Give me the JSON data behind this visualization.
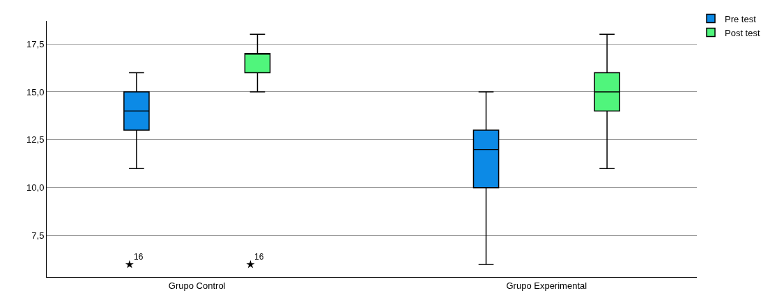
{
  "chart_data": {
    "type": "box",
    "categories": [
      "Grupo Control",
      "Grupo Experimental"
    ],
    "series": [
      {
        "name": "Pre test",
        "color": "#0c8ae6",
        "boxes": [
          {
            "low": 11,
            "q1": 13,
            "median": 14,
            "q3": 15,
            "high": 16,
            "outliers": [
              6
            ]
          },
          {
            "low": 6,
            "q1": 10,
            "median": 12,
            "q3": 13,
            "high": 15
          }
        ]
      },
      {
        "name": "Post test",
        "color": "#50f57c",
        "boxes": [
          {
            "low": 15,
            "q1": 16,
            "median": 17,
            "q3": 17,
            "high": 18,
            "outliers": [
              6
            ]
          },
          {
            "low": 11,
            "q1": 14,
            "median": 15,
            "q3": 16,
            "high": 18
          }
        ]
      }
    ],
    "ylim": [
      5.35,
      18.7
    ],
    "yticks": [
      {
        "value": 7.5,
        "label": "7,5"
      },
      {
        "value": 10,
        "label": "10,0"
      },
      {
        "value": 12.5,
        "label": "12,5"
      },
      {
        "value": 15,
        "label": "15,0"
      },
      {
        "value": 17.5,
        "label": "17,5"
      }
    ],
    "annotations": [
      "16",
      "16"
    ],
    "grid": "y",
    "legend": "top right",
    "marker": "star"
  }
}
